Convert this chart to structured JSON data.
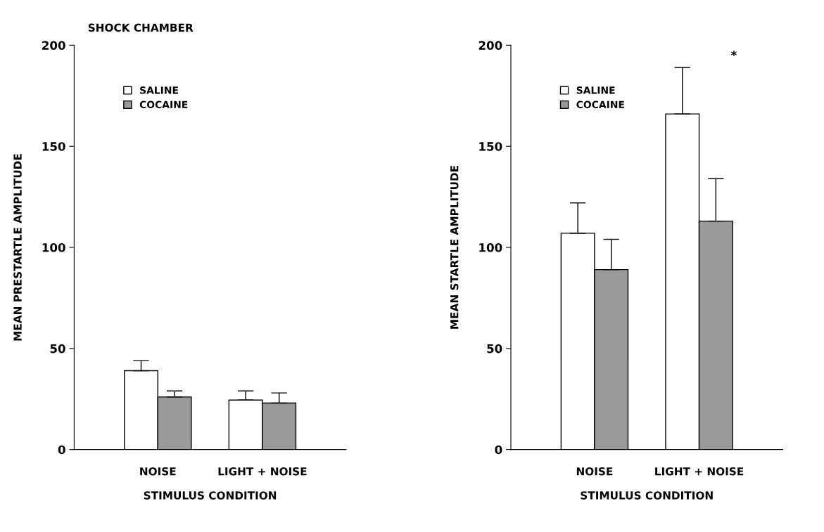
{
  "chart_data": [
    {
      "type": "bar",
      "title": "SHOCK CHAMBER",
      "xlabel": "STIMULUS CONDITION",
      "ylabel": "MEAN PRESTARTLE AMPLITUDE",
      "categories": [
        "NOISE",
        "LIGHT + NOISE"
      ],
      "series": [
        {
          "name": "SALINE",
          "color": "#ffffff",
          "values": [
            39,
            24.5
          ],
          "errors": [
            [
              39,
              44
            ],
            [
              24.5,
              29
            ]
          ]
        },
        {
          "name": "COCAINE",
          "color": "#9a9a9a",
          "values": [
            26,
            23
          ],
          "errors": [
            [
              26,
              29
            ],
            [
              23,
              28
            ]
          ]
        }
      ],
      "ylim": [
        0,
        200
      ],
      "yticks": [
        0,
        50,
        100,
        150,
        200
      ],
      "grid": false,
      "legend": "top left"
    },
    {
      "type": "bar",
      "xlabel": "STIMULUS CONDITION",
      "ylabel": "MEAN STARTLE AMPLITUDE",
      "categories": [
        "NOISE",
        "LIGHT + NOISE"
      ],
      "series": [
        {
          "name": "SALINE",
          "color": "#ffffff",
          "values": [
            107,
            166
          ],
          "errors": [
            [
              107,
              122
            ],
            [
              166,
              189
            ]
          ]
        },
        {
          "name": "COCAINE",
          "color": "#9a9a9a",
          "values": [
            89,
            113
          ],
          "errors": [
            [
              89,
              104
            ],
            [
              113,
              134
            ]
          ]
        }
      ],
      "annotations": [
        "*"
      ],
      "ylim": [
        0,
        200
      ],
      "yticks": [
        0,
        50,
        100,
        150,
        200
      ],
      "grid": false,
      "legend": "top left"
    }
  ]
}
